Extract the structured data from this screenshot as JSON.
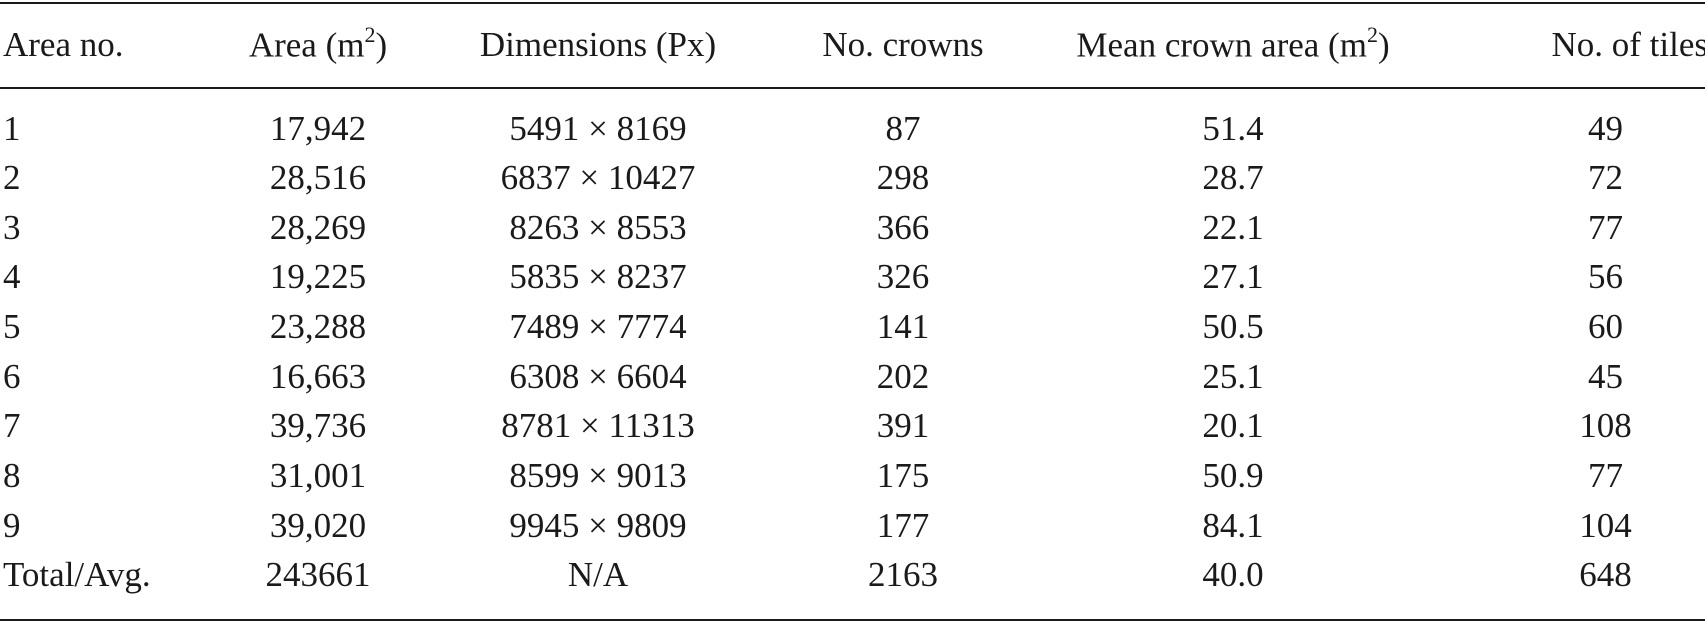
{
  "table": {
    "headers": [
      {
        "text": "Area no.",
        "unit_base": "",
        "unit_sup": "",
        "unit_close": ""
      },
      {
        "text": "Area (m",
        "unit_sup": "2",
        "unit_close": ")"
      },
      {
        "text": "Dimensions (Px)",
        "unit_sup": "",
        "unit_close": ""
      },
      {
        "text": "No. crowns",
        "unit_sup": "",
        "unit_close": ""
      },
      {
        "text": "Mean crown area (m",
        "unit_sup": "2",
        "unit_close": ")"
      },
      {
        "text": "No. of tiles",
        "unit_sup": "",
        "unit_close": ""
      }
    ],
    "rows": [
      [
        "1",
        "17,942",
        "5491 × 8169",
        "87",
        "51.4",
        "49"
      ],
      [
        "2",
        "28,516",
        "6837 × 10427",
        "298",
        "28.7",
        "72"
      ],
      [
        "3",
        "28,269",
        "8263 × 8553",
        "366",
        "22.1",
        "77"
      ],
      [
        "4",
        "19,225",
        "5835 × 8237",
        "326",
        "27.1",
        "56"
      ],
      [
        "5",
        "23,288",
        "7489 × 7774",
        "141",
        "50.5",
        "60"
      ],
      [
        "6",
        "16,663",
        "6308 × 6604",
        "202",
        "25.1",
        "45"
      ],
      [
        "7",
        "39,736",
        "8781 × 11313",
        "391",
        "20.1",
        "108"
      ],
      [
        "8",
        "31,001",
        "8599 × 9013",
        "175",
        "50.9",
        "77"
      ],
      [
        "9",
        "39,020",
        "9945 × 9809",
        "177",
        "84.1",
        "104"
      ],
      [
        "Total/Avg.",
        "243661",
        "N/A",
        "2163",
        "40.0",
        "648"
      ]
    ]
  }
}
